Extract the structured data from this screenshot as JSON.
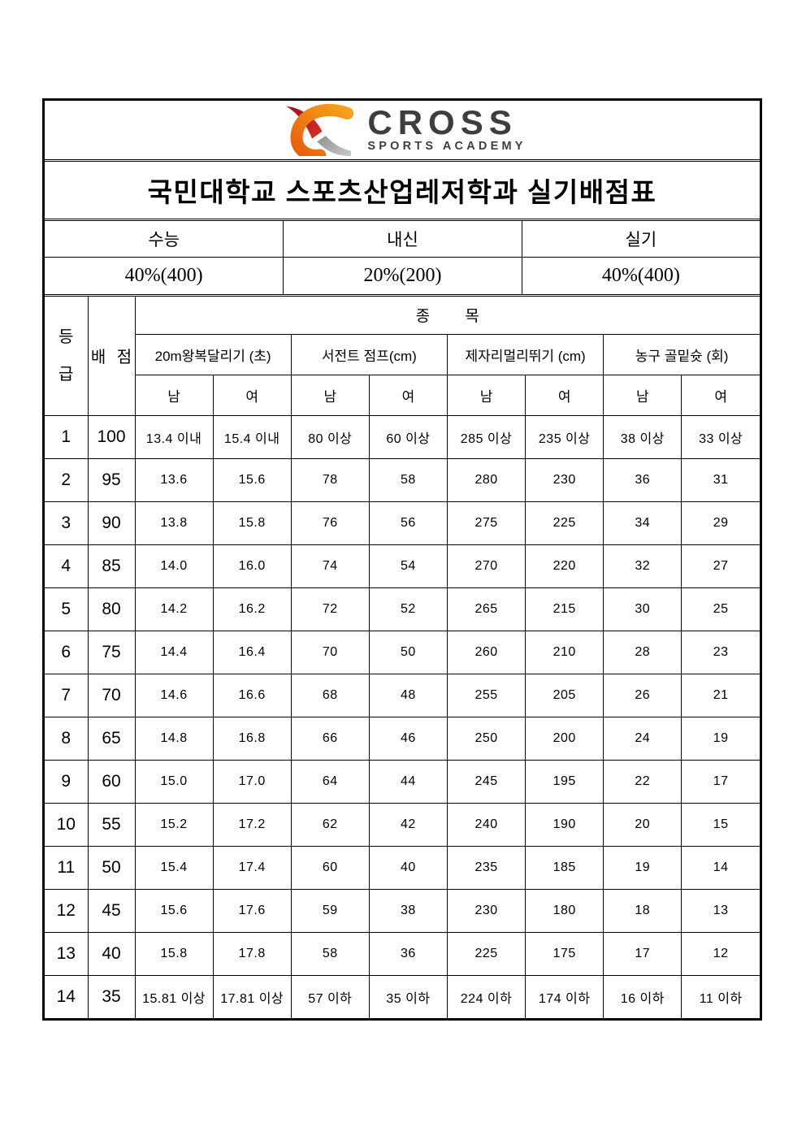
{
  "logo": {
    "brand": "CROSS",
    "subtitle": "SPORTS ACADEMY",
    "colors": {
      "red": "#c0152e",
      "red_dark": "#9e0f26",
      "orange": "#ee7312",
      "orange_light": "#f6a21c",
      "gray": "#b9b9b9",
      "text": "#3e3e40"
    }
  },
  "title": "국민대학교 스포츠산업레저학과 실기배점표",
  "summary": {
    "headers": [
      "수능",
      "내신",
      "실기"
    ],
    "values": [
      "40%(400)",
      "20%(200)",
      "40%(400)"
    ]
  },
  "table": {
    "grade_header": "등급",
    "points_header": "배 점",
    "events_header": "종 목",
    "events": [
      "20m왕복달리기 (초)",
      "서전트 점프(cm)",
      "제자리멀리뛰기 (cm)",
      "농구 골밑슛 (회)"
    ],
    "genders": [
      "남",
      "여",
      "남",
      "여",
      "남",
      "여",
      "남",
      "여"
    ],
    "rows": [
      {
        "grade": "1",
        "points": "100",
        "values": [
          "13.4 이내",
          "15.4 이내",
          "80 이상",
          "60 이상",
          "285 이상",
          "235 이상",
          "38 이상",
          "33 이상"
        ]
      },
      {
        "grade": "2",
        "points": "95",
        "values": [
          "13.6",
          "15.6",
          "78",
          "58",
          "280",
          "230",
          "36",
          "31"
        ]
      },
      {
        "grade": "3",
        "points": "90",
        "values": [
          "13.8",
          "15.8",
          "76",
          "56",
          "275",
          "225",
          "34",
          "29"
        ]
      },
      {
        "grade": "4",
        "points": "85",
        "values": [
          "14.0",
          "16.0",
          "74",
          "54",
          "270",
          "220",
          "32",
          "27"
        ]
      },
      {
        "grade": "5",
        "points": "80",
        "values": [
          "14.2",
          "16.2",
          "72",
          "52",
          "265",
          "215",
          "30",
          "25"
        ]
      },
      {
        "grade": "6",
        "points": "75",
        "values": [
          "14.4",
          "16.4",
          "70",
          "50",
          "260",
          "210",
          "28",
          "23"
        ]
      },
      {
        "grade": "7",
        "points": "70",
        "values": [
          "14.6",
          "16.6",
          "68",
          "48",
          "255",
          "205",
          "26",
          "21"
        ]
      },
      {
        "grade": "8",
        "points": "65",
        "values": [
          "14.8",
          "16.8",
          "66",
          "46",
          "250",
          "200",
          "24",
          "19"
        ]
      },
      {
        "grade": "9",
        "points": "60",
        "values": [
          "15.0",
          "17.0",
          "64",
          "44",
          "245",
          "195",
          "22",
          "17"
        ]
      },
      {
        "grade": "10",
        "points": "55",
        "values": [
          "15.2",
          "17.2",
          "62",
          "42",
          "240",
          "190",
          "20",
          "15"
        ]
      },
      {
        "grade": "11",
        "points": "50",
        "values": [
          "15.4",
          "17.4",
          "60",
          "40",
          "235",
          "185",
          "19",
          "14"
        ]
      },
      {
        "grade": "12",
        "points": "45",
        "values": [
          "15.6",
          "17.6",
          "59",
          "38",
          "230",
          "180",
          "18",
          "13"
        ]
      },
      {
        "grade": "13",
        "points": "40",
        "values": [
          "15.8",
          "17.8",
          "58",
          "36",
          "225",
          "175",
          "17",
          "12"
        ]
      },
      {
        "grade": "14",
        "points": "35",
        "values": [
          "15.81 이상",
          "17.81 이상",
          "57 이하",
          "35 이하",
          "224 이하",
          "174 이하",
          "16 이하",
          "11 이하"
        ]
      }
    ]
  }
}
